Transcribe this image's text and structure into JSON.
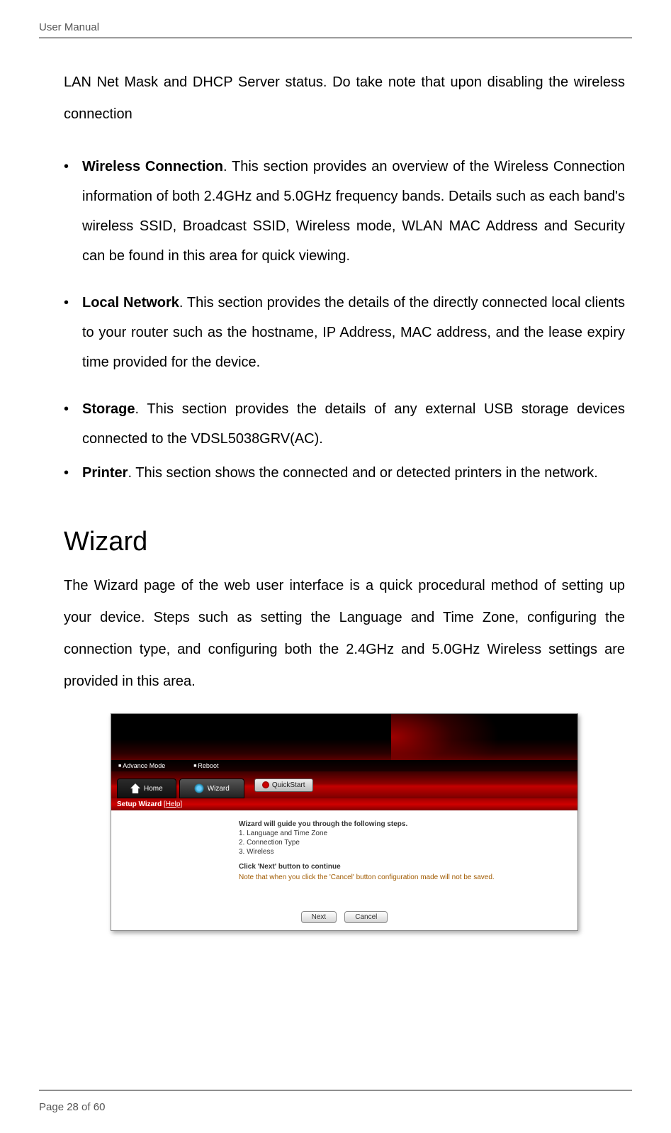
{
  "header": {
    "label": "User Manual"
  },
  "intro_fragment": "LAN Net Mask and DHCP Server status. Do take note that upon disabling the wireless connection",
  "bullets": [
    {
      "title": "Wireless Connection",
      "text": ". This section provides an overview of the Wireless Connection information of both 2.4GHz and 5.0GHz frequency bands. Details such as each band's wireless SSID, Broadcast SSID, Wireless mode, WLAN MAC Address and Security can be found in this area for quick viewing."
    },
    {
      "title": "Local Network",
      "text": ". This section provides the details of the directly connected local clients to your router such as the hostname, IP Address, MAC address, and the lease expiry time provided for the device."
    },
    {
      "title": "Storage",
      "text": ". This section provides the details of any external USB storage devices connected to the VDSL5038GRV(AC)."
    },
    {
      "title": "Printer",
      "text": ". This section shows the connected and or detected printers in the network."
    }
  ],
  "wizard": {
    "heading": "Wizard",
    "intro": "The Wizard page of the web user interface is a quick procedural method of setting up your device. Steps such as setting the Language and Time Zone, configuring the connection type, and configuring both the 2.4GHz and 5.0GHz Wireless settings are provided in this area."
  },
  "router_shot": {
    "modebar": {
      "advance": "Advance Mode",
      "reboot": "Reboot"
    },
    "tabs": {
      "home": "Home",
      "wizard": "Wizard",
      "quickstart": "QuickStart"
    },
    "section": {
      "title": "Setup Wizard",
      "help": "[Help]"
    },
    "body": {
      "lead": "Wizard will guide you through the following steps.",
      "steps": [
        "1. Language and Time Zone",
        "2. Connection Type",
        "3. Wireless"
      ],
      "continue": "Click 'Next' button to continue",
      "note": "Note that when you click the 'Cancel' button configuration made will not be saved."
    },
    "buttons": {
      "next": "Next",
      "cancel": "Cancel"
    },
    "colors": {
      "brand_red": "#b00000",
      "dark": "#000000",
      "note_orange": "#a05a00",
      "btn_border": "#888888"
    }
  },
  "footer": {
    "page_label_prefix": "Page ",
    "page_current": "28",
    "page_of": " of 60"
  }
}
